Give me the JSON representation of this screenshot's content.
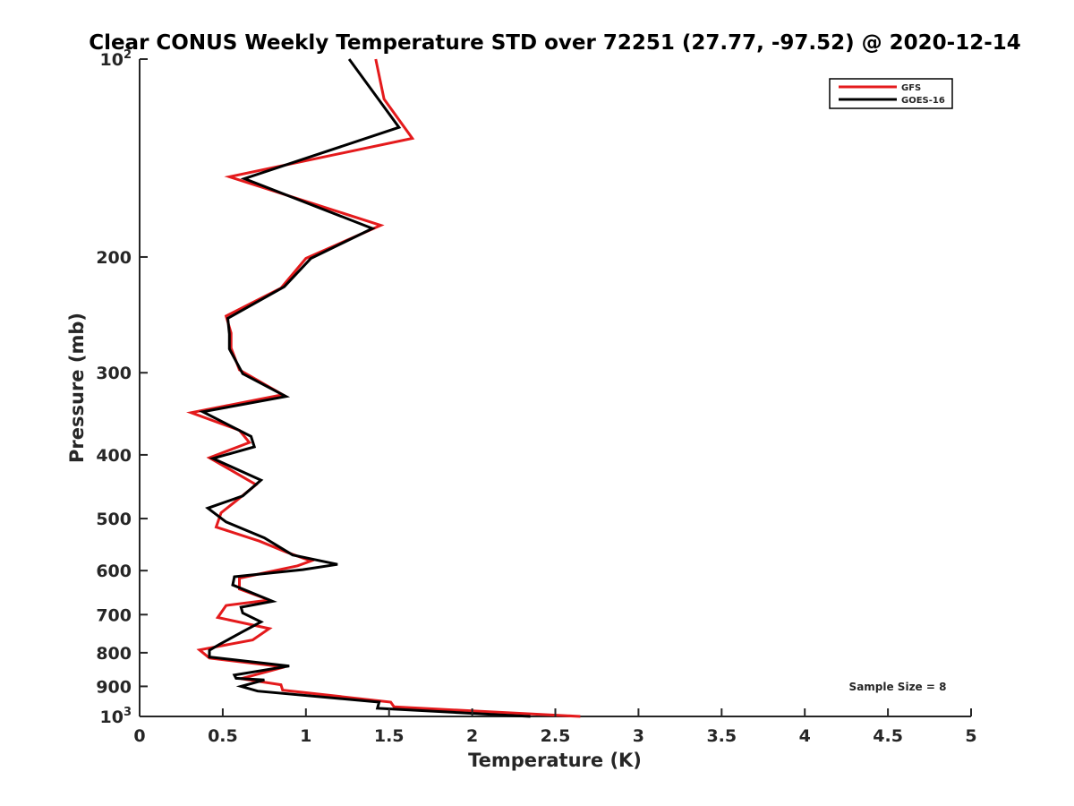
{
  "chart_data": {
    "type": "line",
    "title": "Clear CONUS Weekly Temperature STD over 72251 (27.77, -97.52) @ 2020-12-14",
    "xlabel": "Temperature (K)",
    "ylabel": "Pressure (mb)",
    "xlim": [
      0,
      5
    ],
    "ylim": [
      100,
      1000
    ],
    "yscale": "log",
    "y_reversed": true,
    "xticks": [
      0,
      0.5,
      1,
      1.5,
      2,
      2.5,
      3,
      3.5,
      4,
      4.5,
      5
    ],
    "xtick_labels": [
      "0",
      "0.5",
      "1",
      "1.5",
      "2",
      "2.5",
      "3",
      "3.5",
      "4",
      "4.5",
      "5"
    ],
    "yticks": [
      100,
      200,
      300,
      400,
      500,
      600,
      700,
      800,
      900,
      1000
    ],
    "ytick_labels": [
      {
        "base": "10",
        "exp": "2"
      },
      {
        "base": "200",
        "exp": ""
      },
      {
        "base": "300",
        "exp": ""
      },
      {
        "base": "400",
        "exp": ""
      },
      {
        "base": "500",
        "exp": ""
      },
      {
        "base": "600",
        "exp": ""
      },
      {
        "base": "700",
        "exp": ""
      },
      {
        "base": "800",
        "exp": ""
      },
      {
        "base": "900",
        "exp": ""
      },
      {
        "base": "10",
        "exp": "3"
      }
    ],
    "legend_position": "top-right",
    "annotation": "Sample Size = 8",
    "series": [
      {
        "name": "GFS",
        "color": "#e41a1c",
        "points": [
          [
            1.42,
            100
          ],
          [
            1.47,
            115
          ],
          [
            1.64,
            132
          ],
          [
            0.54,
            151
          ],
          [
            1.45,
            179
          ],
          [
            1.0,
            201
          ],
          [
            0.85,
            223
          ],
          [
            0.52,
            246
          ],
          [
            0.55,
            261
          ],
          [
            0.55,
            275
          ],
          [
            0.6,
            297
          ],
          [
            0.86,
            324
          ],
          [
            0.31,
            345
          ],
          [
            0.6,
            367
          ],
          [
            0.66,
            383
          ],
          [
            0.42,
            404
          ],
          [
            0.7,
            444
          ],
          [
            0.58,
            470
          ],
          [
            0.49,
            490
          ],
          [
            0.46,
            515
          ],
          [
            0.72,
            541
          ],
          [
            0.88,
            562
          ],
          [
            1.03,
            580
          ],
          [
            0.95,
            590
          ],
          [
            0.6,
            616
          ],
          [
            0.6,
            640
          ],
          [
            0.78,
            665
          ],
          [
            0.52,
            678
          ],
          [
            0.47,
            707
          ],
          [
            0.78,
            735
          ],
          [
            0.68,
            765
          ],
          [
            0.36,
            792
          ],
          [
            0.42,
            815
          ],
          [
            0.87,
            841
          ],
          [
            0.61,
            876
          ],
          [
            0.85,
            895
          ],
          [
            0.86,
            912
          ],
          [
            1.51,
            951
          ],
          [
            1.53,
            967
          ],
          [
            2.65,
            1000
          ]
        ]
      },
      {
        "name": "GOES-16",
        "color": "#000000",
        "points": [
          [
            1.26,
            100
          ],
          [
            1.56,
            127
          ],
          [
            0.63,
            152
          ],
          [
            1.4,
            181
          ],
          [
            1.03,
            201
          ],
          [
            0.87,
            222
          ],
          [
            0.53,
            248
          ],
          [
            0.54,
            262
          ],
          [
            0.54,
            276
          ],
          [
            0.62,
            301
          ],
          [
            0.88,
            326
          ],
          [
            0.38,
            344
          ],
          [
            0.67,
            375
          ],
          [
            0.69,
            389
          ],
          [
            0.44,
            405
          ],
          [
            0.73,
            437
          ],
          [
            0.62,
            462
          ],
          [
            0.41,
            482
          ],
          [
            0.52,
            506
          ],
          [
            0.75,
            535
          ],
          [
            0.92,
            568
          ],
          [
            1.19,
            587
          ],
          [
            0.98,
            598
          ],
          [
            0.57,
            613
          ],
          [
            0.56,
            631
          ],
          [
            0.8,
            668
          ],
          [
            0.61,
            682
          ],
          [
            0.62,
            696
          ],
          [
            0.73,
            718
          ],
          [
            0.62,
            743
          ],
          [
            0.48,
            777
          ],
          [
            0.42,
            793
          ],
          [
            0.42,
            812
          ],
          [
            0.9,
            838
          ],
          [
            0.57,
            865
          ],
          [
            0.58,
            875
          ],
          [
            0.75,
            880
          ],
          [
            0.61,
            900
          ],
          [
            0.71,
            915
          ],
          [
            1.44,
            951
          ],
          [
            1.43,
            972
          ],
          [
            2.35,
            1000
          ]
        ]
      }
    ]
  }
}
